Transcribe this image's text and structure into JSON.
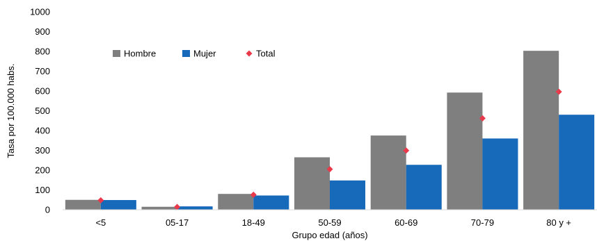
{
  "chart_data": {
    "type": "bar",
    "xlabel": "Grupo edad (años)",
    "ylabel": "Tasa por 100.000 habs.",
    "ylim": [
      0,
      1000
    ],
    "yticks": [
      0,
      100,
      200,
      300,
      400,
      500,
      600,
      700,
      800,
      900,
      1000
    ],
    "grid": false,
    "legend_position": "top-left",
    "categories": [
      "<5",
      "05-17",
      "18-49",
      "50-59",
      "60-69",
      "70-79",
      "80 y +"
    ],
    "series": [
      {
        "name": "Hombre",
        "mark": "bar",
        "color": "#7f7f7f",
        "values": [
          50,
          15,
          80,
          265,
          375,
          592,
          803
        ]
      },
      {
        "name": "Mujer",
        "mark": "bar",
        "color": "#1769ba",
        "values": [
          49,
          17,
          72,
          148,
          227,
          360,
          480
        ]
      },
      {
        "name": "Total",
        "mark": "diamond",
        "color": "#e83a4b",
        "values": [
          48,
          14,
          76,
          205,
          299,
          462,
          596
        ]
      }
    ]
  }
}
